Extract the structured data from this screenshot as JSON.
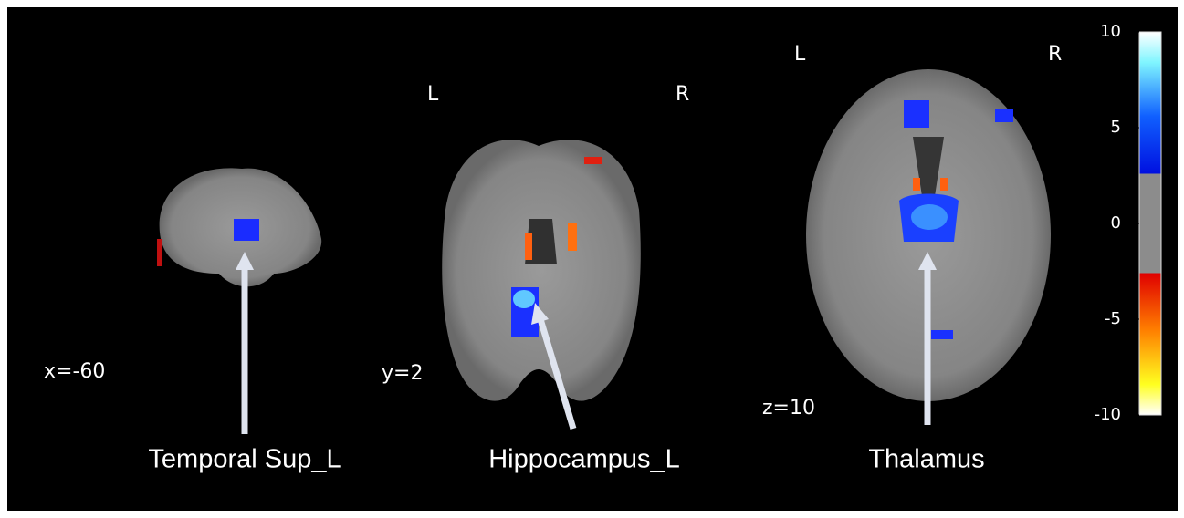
{
  "panels": [
    {
      "coordinate": "x=-60",
      "annotation": "Temporal Sup_L"
    },
    {
      "coordinate": "y=2",
      "left": "L",
      "right": "R",
      "annotation": "Hippocampus_L"
    },
    {
      "coordinate": "z=10",
      "left": "L",
      "right": "R",
      "annotation": "Thalamus"
    }
  ],
  "colorbar": {
    "range": [
      -10,
      10
    ],
    "ticks": [
      10,
      5,
      0,
      -5,
      -10
    ]
  }
}
